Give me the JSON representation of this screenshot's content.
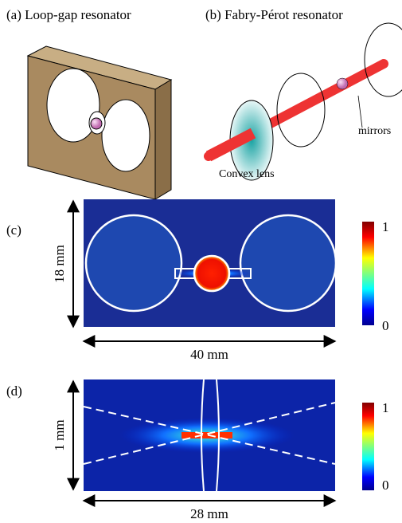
{
  "panel_a": {
    "label": "(a) Loop-gap resonator"
  },
  "panel_b": {
    "label": "(b) Fabry-Pérot resonator",
    "lens_label": "Convex lens",
    "mirror_label": "mirrors"
  },
  "panel_c": {
    "label": "(c)",
    "height_label": "18 mm",
    "width_label": "40 mm",
    "colorbar_max": 1,
    "colorbar_min": 0
  },
  "panel_d": {
    "label": "(d)",
    "height_label": "1 mm",
    "width_label": "28 mm",
    "colorbar_max": 1,
    "colorbar_min": 0
  }
}
